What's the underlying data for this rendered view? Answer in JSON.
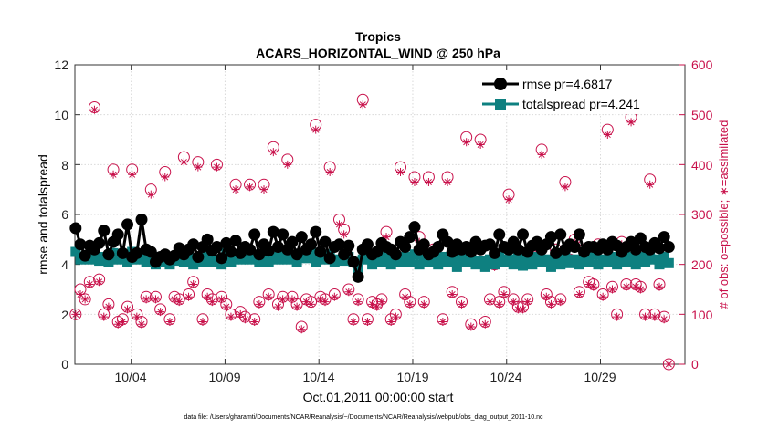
{
  "chart_data": {
    "type": "line",
    "title": "Tropics",
    "subtitle": "ACARS_HORIZONTAL_WIND @ 250 hPa",
    "xlabel": "Oct.01,2011 00:00:00 start",
    "ylabel": "rmse and totalspread",
    "ylabel_right": "# of obs: o=possible; ∗=assimilated",
    "footnote": "data file: /Users/gharamti/Documents/NCAR/Reanalysis/~/Documents/NCAR/Reanalysis/webpub/obs_diag_output_2011-10.nc",
    "xlim": [
      1,
      33.5
    ],
    "ylim": [
      0,
      12
    ],
    "ylim_right": [
      0,
      600
    ],
    "x_tick_values": [
      4,
      9,
      14,
      19,
      24,
      29
    ],
    "x_tick_labels": [
      "10/04",
      "10/09",
      "10/14",
      "10/19",
      "10/24",
      "10/29"
    ],
    "y_ticks": [
      "0",
      "2",
      "4",
      "6",
      "8",
      "10",
      "12"
    ],
    "y_ticks_right": [
      "0",
      "100",
      "200",
      "300",
      "400",
      "500",
      "600"
    ],
    "legend": [
      "rmse pr=4.6817",
      "totalspread pr=4.241"
    ],
    "series_colors": {
      "rmse": "#000000",
      "spread": "#0e8080",
      "obs": "#c8104a"
    },
    "series": [
      {
        "name": "rmse pr=4.6817",
        "values": [
          5.45,
          4.8,
          4.35,
          4.75,
          4.6,
          4.85,
          5.35,
          4.4,
          4.9,
          5.2,
          4.45,
          5.6,
          4.3,
          4.45,
          5.8,
          4.6,
          4.5,
          4.1,
          4.3,
          4.4,
          4.2,
          4.35,
          4.65,
          4.4,
          4.6,
          4.8,
          4.3,
          4.7,
          5.0,
          4.55,
          4.7,
          4.25,
          4.85,
          4.5,
          4.95,
          4.45,
          4.7,
          4.6,
          5.2,
          4.4,
          4.8,
          4.55,
          5.3,
          4.7,
          5.2,
          4.6,
          4.9,
          4.4,
          5.1,
          4.6,
          4.8,
          5.3,
          4.5,
          4.9,
          4.25,
          4.7,
          4.8,
          4.4,
          4.75,
          4.1,
          3.5,
          4.6,
          4.8,
          4.4,
          4.5,
          4.85,
          4.7,
          4.6,
          4.4,
          4.9,
          4.7,
          5.1,
          5.5,
          4.6,
          4.8,
          4.4,
          4.5,
          4.7,
          5.2,
          4.9,
          4.5,
          4.8,
          4.6,
          4.7,
          4.5,
          4.9,
          4.6,
          4.75,
          4.8,
          4.45,
          5.2,
          4.7,
          4.6,
          4.9,
          4.6,
          5.2,
          4.5,
          4.75,
          4.9,
          4.6,
          4.8,
          5.1,
          4.45,
          5.2,
          4.6,
          4.8,
          4.7,
          5.2,
          4.5,
          4.7,
          4.7,
          4.6,
          4.8,
          4.6,
          4.9,
          4.75,
          4.5,
          4.7,
          4.9,
          4.6,
          5.05,
          4.7,
          4.6,
          4.85,
          4.65,
          5.1,
          4.7
        ]
      },
      {
        "name": "totalspread pr=4.241",
        "values": [
          4.5,
          4.2,
          4.3,
          4.2,
          4.4,
          4.15,
          4.3,
          4.1,
          4.45,
          4.2,
          4.3,
          4.1,
          4.5,
          4.2,
          4.35,
          4.1,
          4.2,
          4.0,
          4.3,
          4.1,
          4.0,
          4.15,
          4.2,
          4.1,
          4.3,
          4.0,
          4.2,
          4.1,
          4.3,
          4.1,
          4.2,
          4.0,
          4.45,
          4.1,
          4.3,
          4.2,
          4.5,
          4.2,
          4.3,
          4.1,
          4.2,
          4.1,
          4.3,
          4.2,
          4.4,
          4.2,
          4.3,
          4.1,
          4.35,
          4.25,
          4.5,
          4.1,
          4.3,
          4.2,
          4.4,
          4.1,
          4.2,
          4.15,
          4.3,
          4.1,
          3.8,
          4.2,
          4.3,
          4.0,
          4.2,
          4.1,
          4.3,
          4.0,
          4.2,
          4.1,
          4.3,
          4.1,
          4.4,
          4.0,
          4.2,
          4.1,
          4.35,
          4.0,
          4.3,
          4.1,
          4.2,
          3.9,
          4.3,
          4.1,
          4.2,
          4.0,
          4.15,
          3.9,
          4.2,
          4.0,
          4.3,
          4.1,
          4.2,
          4.0,
          4.3,
          3.95,
          4.2,
          4.0,
          4.3,
          4.1,
          4.2,
          3.9,
          4.15,
          4.0,
          4.3,
          4.05,
          4.2,
          4.0,
          4.3,
          4.1,
          4.4,
          4.0,
          4.2,
          4.1,
          4.3,
          4.0,
          4.2,
          4.1,
          4.3,
          4.0,
          4.3,
          4.1,
          4.4,
          4.2,
          4.0,
          4.3,
          4.05
        ]
      },
      {
        "name": "possible",
        "axis": "right",
        "marker": "circle",
        "values": [
          100,
          150,
          130,
          165,
          515,
          170,
          100,
          120,
          390,
          85,
          90,
          115,
          390,
          100,
          85,
          135,
          350,
          135,
          110,
          385,
          90,
          135,
          130,
          415,
          140,
          165,
          405,
          90,
          140,
          130,
          400,
          135,
          120,
          100,
          360,
          105,
          95,
          360,
          90,
          125,
          360,
          140,
          435,
          120,
          135,
          410,
          135,
          120,
          75,
          130,
          125,
          480,
          135,
          130,
          395,
          140,
          290,
          270,
          150,
          90,
          130,
          530,
          90,
          125,
          120,
          130,
          265,
          90,
          100,
          395,
          140,
          125,
          375,
          255,
          125,
          375,
          230,
          205,
          90,
          375,
          145,
          200,
          125,
          455,
          80,
          240,
          450,
          85,
          130,
          200,
          125,
          145,
          340,
          130,
          115,
          115,
          130,
          220,
          230,
          430,
          140,
          125,
          230,
          130,
          365,
          210,
          250,
          145,
          230,
          165,
          160,
          240,
          140,
          470,
          155,
          100,
          245,
          160,
          495,
          160,
          155,
          100,
          370,
          100,
          160,
          95,
          0
        ]
      },
      {
        "name": "assimilated",
        "axis": "right",
        "marker": "star",
        "values": [
          100,
          140,
          130,
          160,
          510,
          165,
          95,
          115,
          380,
          80,
          85,
          110,
          380,
          95,
          80,
          130,
          340,
          130,
          105,
          375,
          85,
          130,
          125,
          405,
          135,
          160,
          395,
          85,
          135,
          125,
          395,
          130,
          115,
          95,
          350,
          100,
          90,
          355,
          85,
          120,
          350,
          135,
          425,
          115,
          130,
          400,
          130,
          115,
          70,
          125,
          120,
          470,
          130,
          125,
          385,
          135,
          280,
          260,
          145,
          85,
          125,
          520,
          85,
          120,
          115,
          125,
          255,
          85,
          95,
          385,
          135,
          120,
          365,
          245,
          120,
          365,
          225,
          200,
          85,
          365,
          140,
          195,
          120,
          445,
          75,
          235,
          440,
          80,
          125,
          195,
          120,
          140,
          330,
          125,
          110,
          110,
          125,
          215,
          225,
          420,
          135,
          120,
          225,
          125,
          355,
          205,
          245,
          140,
          225,
          160,
          155,
          235,
          135,
          460,
          150,
          95,
          240,
          155,
          485,
          155,
          150,
          95,
          360,
          95,
          155,
          90,
          0
        ]
      }
    ]
  }
}
